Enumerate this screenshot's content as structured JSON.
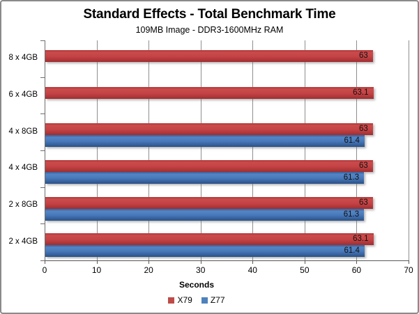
{
  "frame": {
    "title": "Standard Effects - Total Benchmark Time",
    "subtitle": "109MB Image - DDR3-1600MHz RAM"
  },
  "chart_data": {
    "type": "bar",
    "orientation": "horizontal",
    "title": "Standard Effects - Total Benchmark Time",
    "subtitle": "109MB Image - DDR3-1600MHz RAM",
    "categories": [
      "8 x 4GB",
      "6 x 4GB",
      "4 x 8GB",
      "4 x 4GB",
      "2 x 8GB",
      "2 x 4GB"
    ],
    "series": [
      {
        "name": "X79",
        "color": "#BE4B48",
        "values": [
          63,
          63.1,
          63,
          63,
          63,
          63.1
        ]
      },
      {
        "name": "Z77",
        "color": "#4F81BD",
        "values": [
          null,
          null,
          61.4,
          61.3,
          61.3,
          61.4
        ]
      }
    ],
    "data_labels": [
      [
        "63",
        "63.1",
        "63",
        "63",
        "63",
        "63.1"
      ],
      [
        null,
        null,
        "61.4",
        "61.3",
        "61.3",
        "61.4"
      ]
    ],
    "xlabel": "Seconds",
    "xlim": [
      0,
      70
    ],
    "xticks": [
      0,
      10,
      20,
      30,
      40,
      50,
      60,
      70
    ],
    "grid": "vertical",
    "legend_position": "bottom",
    "colors": {
      "grid": "#8e8e8e",
      "axis": "#595959",
      "x79_red": "#BE4B48",
      "z77_blue": "#4F81BD"
    }
  }
}
